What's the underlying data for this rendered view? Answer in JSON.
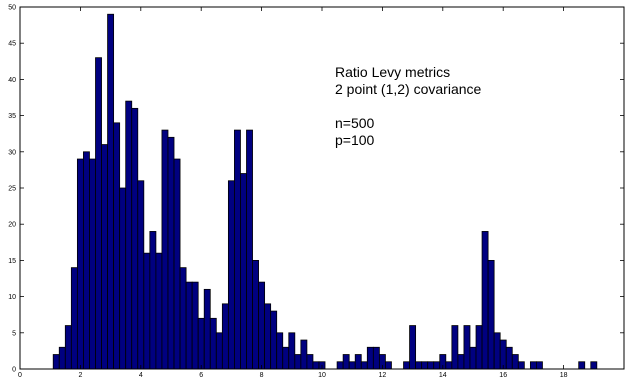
{
  "chart_data": {
    "type": "bar",
    "subtype": "histogram",
    "xlim": [
      0,
      20
    ],
    "ylim": [
      0,
      50
    ],
    "bin_width": 0.2,
    "x_ticks": [
      0,
      2,
      4,
      6,
      8,
      10,
      12,
      14,
      16,
      18
    ],
    "x_tick_labels": [
      "0",
      "2",
      "4",
      "6",
      "8",
      "10",
      "12",
      "14",
      "16",
      "18"
    ],
    "y_ticks": [
      0,
      5,
      10,
      15,
      20,
      25,
      30,
      35,
      40,
      45,
      50
    ],
    "y_tick_labels": [
      "0",
      "5",
      "10",
      "15",
      "20",
      "25",
      "30",
      "35",
      "40",
      "45",
      "50"
    ],
    "bar_color": "#000080",
    "grid": false,
    "bins": [
      {
        "x": 1.2,
        "y": 2
      },
      {
        "x": 1.4,
        "y": 3
      },
      {
        "x": 1.6,
        "y": 6
      },
      {
        "x": 1.8,
        "y": 14
      },
      {
        "x": 2.0,
        "y": 29
      },
      {
        "x": 2.2,
        "y": 30
      },
      {
        "x": 2.4,
        "y": 29
      },
      {
        "x": 2.6,
        "y": 43
      },
      {
        "x": 2.8,
        "y": 31
      },
      {
        "x": 3.0,
        "y": 49
      },
      {
        "x": 3.2,
        "y": 34
      },
      {
        "x": 3.4,
        "y": 25
      },
      {
        "x": 3.6,
        "y": 37
      },
      {
        "x": 3.8,
        "y": 36
      },
      {
        "x": 4.0,
        "y": 26
      },
      {
        "x": 4.2,
        "y": 16
      },
      {
        "x": 4.4,
        "y": 19
      },
      {
        "x": 4.6,
        "y": 16
      },
      {
        "x": 4.8,
        "y": 33
      },
      {
        "x": 5.0,
        "y": 32
      },
      {
        "x": 5.2,
        "y": 29
      },
      {
        "x": 5.4,
        "y": 14
      },
      {
        "x": 5.6,
        "y": 12
      },
      {
        "x": 5.8,
        "y": 12
      },
      {
        "x": 6.0,
        "y": 7
      },
      {
        "x": 6.2,
        "y": 11
      },
      {
        "x": 6.4,
        "y": 7
      },
      {
        "x": 6.6,
        "y": 5
      },
      {
        "x": 6.8,
        "y": 9
      },
      {
        "x": 7.0,
        "y": 26
      },
      {
        "x": 7.2,
        "y": 33
      },
      {
        "x": 7.4,
        "y": 27
      },
      {
        "x": 7.6,
        "y": 33
      },
      {
        "x": 7.8,
        "y": 15
      },
      {
        "x": 8.0,
        "y": 12
      },
      {
        "x": 8.2,
        "y": 9
      },
      {
        "x": 8.4,
        "y": 8
      },
      {
        "x": 8.6,
        "y": 5
      },
      {
        "x": 8.8,
        "y": 3
      },
      {
        "x": 9.0,
        "y": 5
      },
      {
        "x": 9.2,
        "y": 2
      },
      {
        "x": 9.4,
        "y": 4
      },
      {
        "x": 9.6,
        "y": 2
      },
      {
        "x": 9.8,
        "y": 1
      },
      {
        "x": 10.0,
        "y": 1
      },
      {
        "x": 10.2,
        "y": 0
      },
      {
        "x": 10.4,
        "y": 0
      },
      {
        "x": 10.6,
        "y": 1
      },
      {
        "x": 10.8,
        "y": 2
      },
      {
        "x": 11.0,
        "y": 1
      },
      {
        "x": 11.2,
        "y": 2
      },
      {
        "x": 11.4,
        "y": 1
      },
      {
        "x": 11.6,
        "y": 3
      },
      {
        "x": 11.8,
        "y": 3
      },
      {
        "x": 12.0,
        "y": 2
      },
      {
        "x": 12.2,
        "y": 1
      },
      {
        "x": 12.4,
        "y": 0
      },
      {
        "x": 12.6,
        "y": 0
      },
      {
        "x": 12.8,
        "y": 1
      },
      {
        "x": 13.0,
        "y": 6
      },
      {
        "x": 13.2,
        "y": 1
      },
      {
        "x": 13.4,
        "y": 1
      },
      {
        "x": 13.6,
        "y": 1
      },
      {
        "x": 13.8,
        "y": 1
      },
      {
        "x": 14.0,
        "y": 2
      },
      {
        "x": 14.2,
        "y": 1
      },
      {
        "x": 14.4,
        "y": 6
      },
      {
        "x": 14.6,
        "y": 2
      },
      {
        "x": 14.8,
        "y": 6
      },
      {
        "x": 15.0,
        "y": 3
      },
      {
        "x": 15.2,
        "y": 6
      },
      {
        "x": 15.4,
        "y": 19
      },
      {
        "x": 15.6,
        "y": 15
      },
      {
        "x": 15.8,
        "y": 5
      },
      {
        "x": 16.0,
        "y": 4
      },
      {
        "x": 16.2,
        "y": 3
      },
      {
        "x": 16.4,
        "y": 2
      },
      {
        "x": 16.6,
        "y": 1
      },
      {
        "x": 16.8,
        "y": 0
      },
      {
        "x": 17.0,
        "y": 1
      },
      {
        "x": 17.2,
        "y": 1
      },
      {
        "x": 17.4,
        "y": 0
      },
      {
        "x": 17.6,
        "y": 0
      },
      {
        "x": 17.8,
        "y": 0
      },
      {
        "x": 18.0,
        "y": 0
      },
      {
        "x": 18.2,
        "y": 0
      },
      {
        "x": 18.4,
        "y": 0
      },
      {
        "x": 18.6,
        "y": 1
      },
      {
        "x": 18.8,
        "y": 0
      },
      {
        "x": 19.0,
        "y": 1
      }
    ],
    "annotation_lines": [
      "Ratio Levy metrics",
      "2 point (1,2) covariance",
      "",
      "n=500",
      "p=100"
    ]
  }
}
